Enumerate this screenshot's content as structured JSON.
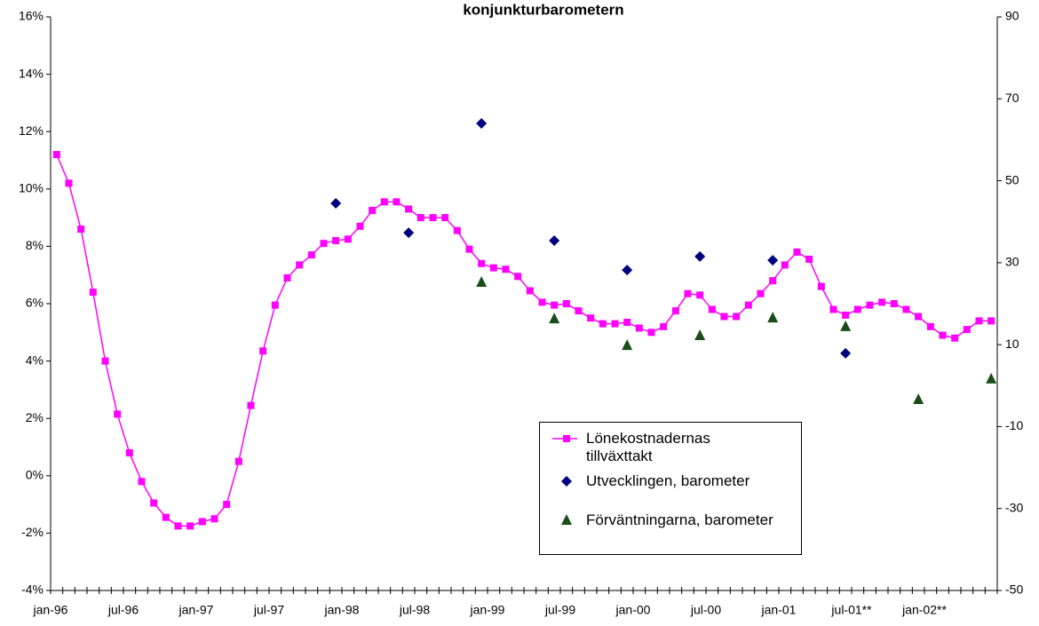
{
  "chart_data": {
    "type": "line",
    "title": "konjunkturbarometern",
    "categories": [
      "jan-96",
      null,
      null,
      null,
      null,
      null,
      "jul-96",
      null,
      null,
      null,
      null,
      null,
      "jan-97",
      null,
      null,
      null,
      null,
      null,
      "jul-97",
      null,
      null,
      null,
      null,
      null,
      "jan-98",
      null,
      null,
      null,
      null,
      null,
      "jul-98",
      null,
      null,
      null,
      null,
      null,
      "jan-99",
      null,
      null,
      null,
      null,
      null,
      "jul-99",
      null,
      null,
      null,
      null,
      null,
      "jan-00",
      null,
      null,
      null,
      null,
      null,
      "jul-00",
      null,
      null,
      null,
      null,
      null,
      "jan-01",
      null,
      null,
      null,
      null,
      null,
      "jul-01**",
      null,
      null,
      null,
      null,
      null,
      "jan-02**",
      null,
      null,
      null,
      null,
      null
    ],
    "series": [
      {
        "name": "Lönekostnadernas tillväxttakt",
        "color": "#ff00ff",
        "marker": "square",
        "axis": "y",
        "values": [
          11.2,
          10.2,
          8.6,
          6.4,
          4.0,
          2.15,
          0.8,
          -0.2,
          -0.95,
          -1.45,
          -1.75,
          -1.75,
          -1.6,
          -1.5,
          -1.0,
          0.5,
          2.45,
          4.35,
          5.95,
          6.9,
          7.35,
          7.7,
          8.1,
          8.2,
          8.25,
          8.7,
          9.25,
          9.55,
          9.55,
          9.3,
          9.0,
          9.0,
          9.0,
          8.55,
          7.9,
          7.4,
          7.25,
          7.2,
          6.95,
          6.45,
          6.05,
          5.95,
          6.0,
          5.75,
          5.5,
          5.3,
          5.3,
          5.35,
          5.15,
          5.0,
          5.2,
          5.75,
          6.35,
          6.3,
          5.8,
          5.55,
          5.55,
          5.95,
          6.35,
          6.8,
          7.35,
          7.8,
          7.55,
          6.6,
          5.8,
          5.6,
          5.8,
          5.95,
          6.05,
          6.0,
          5.8,
          5.55,
          5.2,
          4.9,
          4.8,
          5.1,
          5.4,
          5.4
        ]
      },
      {
        "name": "Utvecklingen, barometer",
        "color": "#000080",
        "marker": "diamond",
        "axis": "y2",
        "values": [
          null,
          null,
          null,
          null,
          null,
          null,
          null,
          null,
          null,
          null,
          null,
          null,
          null,
          null,
          null,
          null,
          null,
          null,
          null,
          null,
          null,
          null,
          null,
          44.5,
          null,
          null,
          null,
          null,
          null,
          37.3,
          null,
          null,
          null,
          null,
          null,
          64,
          null,
          null,
          null,
          null,
          null,
          35.4,
          null,
          null,
          null,
          null,
          null,
          28.2,
          null,
          null,
          null,
          null,
          null,
          31.5,
          null,
          null,
          null,
          null,
          null,
          30.6,
          null,
          null,
          null,
          null,
          null,
          7.9,
          null,
          null,
          null,
          null,
          null,
          null,
          null,
          null,
          null,
          null,
          null,
          null
        ]
      },
      {
        "name": "Förväntningarna, barometer",
        "color": "#1a4d1a",
        "marker": "triangle",
        "axis": "y2",
        "values": [
          null,
          null,
          null,
          null,
          null,
          null,
          null,
          null,
          null,
          null,
          null,
          null,
          null,
          null,
          null,
          null,
          null,
          null,
          null,
          null,
          null,
          null,
          null,
          null,
          null,
          null,
          null,
          null,
          null,
          null,
          null,
          null,
          null,
          null,
          null,
          25.2,
          null,
          null,
          null,
          null,
          null,
          16.3,
          null,
          null,
          null,
          null,
          null,
          9.8,
          null,
          null,
          null,
          null,
          null,
          12.2,
          null,
          null,
          null,
          null,
          null,
          16.5,
          null,
          null,
          null,
          null,
          null,
          14.4,
          null,
          null,
          null,
          null,
          null,
          -3.4,
          null,
          null,
          null,
          null,
          null,
          1.6
        ]
      }
    ],
    "ylim": [
      -4,
      16
    ],
    "yticks": [
      {
        "value": -4,
        "label": "-4%"
      },
      {
        "value": -2,
        "label": "-2%"
      },
      {
        "value": 0,
        "label": "0%"
      },
      {
        "value": 2,
        "label": "2%"
      },
      {
        "value": 4,
        "label": "4%"
      },
      {
        "value": 6,
        "label": "6%"
      },
      {
        "value": 8,
        "label": "8%"
      },
      {
        "value": 10,
        "label": "10%"
      },
      {
        "value": 12,
        "label": "12%"
      },
      {
        "value": 14,
        "label": "14%"
      },
      {
        "value": 16,
        "label": "16%"
      }
    ],
    "y2lim": [
      -50,
      90
    ],
    "y2ticks": [
      -50,
      -30,
      -10,
      10,
      30,
      50,
      70,
      90
    ],
    "legend": "lower-right"
  }
}
